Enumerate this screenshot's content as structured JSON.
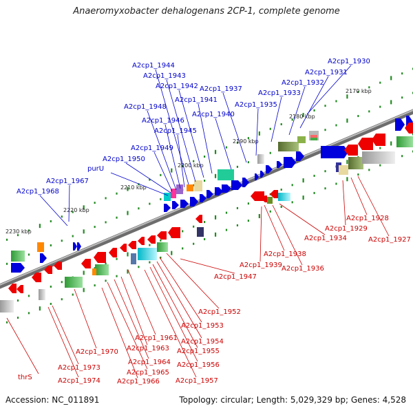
{
  "header": {
    "title": "Anaeromyxobacter dehalogenans 2CP-1, complete genome"
  },
  "footer": {
    "accession": "Accession: NC_011891",
    "summary": "Topology: circular; Length: 5,029,329 bp; Genes: 4,528"
  },
  "ruler": {
    "ticks": [
      "2170 kbp",
      "2180 kbp",
      "2190 kbp",
      "2200 kbp",
      "2210 kbp",
      "2220 kbp",
      "2230 kbp"
    ]
  },
  "labels": {
    "forward": [
      "A2cp1_1930",
      "A2cp1_1931",
      "A2cp1_1932",
      "A2cp1_1933",
      "A2cp1_1935",
      "A2cp1_1937",
      "A2cp1_1940",
      "A2cp1_1941",
      "A2cp1_1942",
      "A2cp1_1943",
      "A2cp1_1944",
      "A2cp1_1945",
      "A2cp1_1946",
      "A2cp1_1948",
      "A2cp1_1949",
      "A2cp1_1950",
      "purU",
      "A2cp1_1967",
      "A2cp1_1968"
    ],
    "reverse": [
      "A2cp1_1927",
      "A2cp1_1928",
      "A2cp1_1929",
      "A2cp1_1934",
      "A2cp1_1936",
      "A2cp1_1938",
      "A2cp1_1939",
      "A2cp1_1947",
      "A2cp1_1952",
      "A2cp1_1953",
      "A2cp1_1954",
      "A2cp1_1955",
      "A2cp1_1956",
      "A2cp1_1957",
      "A2cp1_1961",
      "A2cp1_1963",
      "A2cp1_1964",
      "A2cp1_1965",
      "A2cp1_1966",
      "A2cp1_1970",
      "A2cp1_1973",
      "A2cp1_1974",
      "thrS"
    ]
  },
  "colors": {
    "forward_gene": "#0000dd",
    "reverse_gene": "#ee0000",
    "forward_label": "#0000cc",
    "reverse_label": "#cc0000",
    "backbone": "#7a7a7a",
    "tick": "#228b22",
    "cog_green": "#3cb043",
    "cog_olive": "#6b8e23",
    "cog_cyan": "#00cccc",
    "cog_orange": "#ff8800",
    "cog_gray": "#bbbbbb"
  }
}
